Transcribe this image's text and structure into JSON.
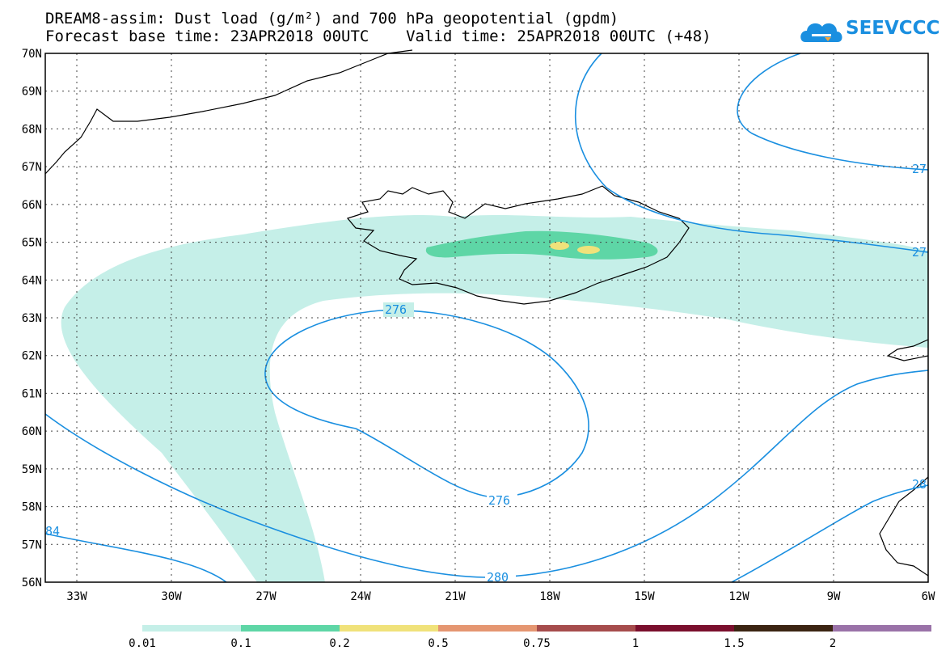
{
  "title": {
    "line1": "DREAM8-assim: Dust load (g/m²) and 700 hPa geopotential (gpdm)",
    "line2": "Forecast base time: 23APR2018 00UTC    Valid time: 25APR2018 00UTC (+48)"
  },
  "logo": {
    "text": "SEEVCCC",
    "icon": "cloud-icon",
    "color": "#1a8fe0"
  },
  "map": {
    "lat_labels": [
      "70N",
      "69N",
      "68N",
      "67N",
      "66N",
      "65N",
      "64N",
      "63N",
      "62N",
      "61N",
      "60N",
      "59N",
      "58N",
      "57N",
      "56N"
    ],
    "lon_labels": [
      "33W",
      "30W",
      "27W",
      "24W",
      "21W",
      "18W",
      "15W",
      "12W",
      "9W",
      "6W"
    ],
    "contour_color": "#1a8fe0",
    "contour_labels": [
      "276",
      "276",
      "280",
      "27",
      "27",
      "28",
      "84"
    ]
  },
  "colorbar": {
    "labels": [
      "0.01",
      "0.1",
      "0.2",
      "0.5",
      "0.75",
      "1",
      "1.5",
      "2"
    ],
    "colors": [
      "#c5efe8",
      "#5ed6a6",
      "#f0e27a",
      "#e59671",
      "#a64c4c",
      "#7a0f2d",
      "#3b2412",
      "#9a72a8"
    ]
  }
}
